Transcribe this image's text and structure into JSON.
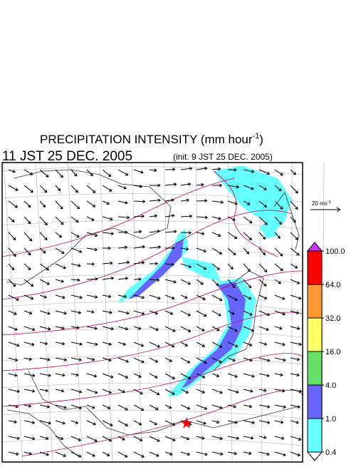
{
  "header": {
    "title": "PRECIPITATION INTENSITY (mm hour",
    "title_sup": "-1",
    "title_end": ")",
    "time": "11 JST 25 DEC. 2005",
    "init": "(init. 9 JST 25 DEC. 2005)"
  },
  "vector_scale": {
    "label": "20 ms",
    "sup": "-1"
  },
  "colorbar": {
    "levels": [
      {
        "value": 100,
        "label": "100.0"
      },
      {
        "value": 64,
        "label": "64.0"
      },
      {
        "value": 32,
        "label": "32.0"
      },
      {
        "value": 16,
        "label": "16.0"
      },
      {
        "value": 4,
        "label": "4.0"
      },
      {
        "value": 1,
        "label": "1.0"
      },
      {
        "value": 0.4,
        "label": "0.4"
      }
    ],
    "colors": [
      "#cc33ff",
      "#ff0000",
      "#ff9933",
      "#ffff66",
      "#66e066",
      "#6666ff",
      "#66ffff",
      "#ffffff"
    ]
  }
}
